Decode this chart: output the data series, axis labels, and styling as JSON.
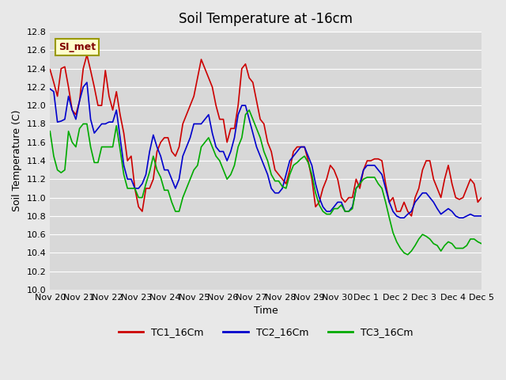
{
  "title": "Soil Temperature at -16cm",
  "xlabel": "Time",
  "ylabel": "Soil Temperature (C)",
  "ylim": [
    10.0,
    12.8
  ],
  "yticks": [
    10.0,
    10.2,
    10.4,
    10.6,
    10.8,
    11.0,
    11.2,
    11.4,
    11.6,
    11.8,
    12.0,
    12.2,
    12.4,
    12.6,
    12.8
  ],
  "xtick_labels": [
    "Nov 20",
    "Nov 21",
    "Nov 22",
    "Nov 23",
    "Nov 24",
    "Nov 25",
    "Nov 26",
    "Nov 27",
    "Nov 28",
    "Nov 29",
    "Nov 30",
    "Dec 1",
    "Dec 2",
    "Dec 3",
    "Dec 4",
    "Dec 5"
  ],
  "bg_color": "#e8e8e8",
  "plot_bg_color": "#d8d8d8",
  "grid_color": "#ffffff",
  "legend_label": "SI_met",
  "series_colors": [
    "#cc0000",
    "#0000cc",
    "#00aa00"
  ],
  "series_names": [
    "TC1_16Cm",
    "TC2_16Cm",
    "TC3_16Cm"
  ],
  "TC1": [
    12.39,
    12.25,
    12.1,
    12.4,
    12.42,
    12.2,
    11.95,
    11.9,
    12.05,
    12.4,
    12.55,
    12.38,
    12.2,
    12.0,
    12.0,
    12.38,
    12.1,
    11.95,
    12.15,
    11.9,
    11.7,
    11.4,
    11.45,
    11.1,
    10.9,
    10.85,
    11.1,
    11.1,
    11.2,
    11.5,
    11.6,
    11.65,
    11.65,
    11.5,
    11.45,
    11.55,
    11.8,
    11.9,
    12.0,
    12.1,
    12.3,
    12.5,
    12.4,
    12.3,
    12.2,
    12.0,
    11.85,
    11.85,
    11.6,
    11.75,
    11.75,
    12.0,
    12.4,
    12.45,
    12.3,
    12.25,
    12.05,
    11.85,
    11.8,
    11.6,
    11.5,
    11.3,
    11.25,
    11.2,
    11.15,
    11.3,
    11.5,
    11.55,
    11.55,
    11.55,
    11.4,
    11.2,
    10.9,
    10.95,
    11.1,
    11.2,
    11.35,
    11.3,
    11.2,
    11.0,
    10.95,
    11.0,
    11.0,
    11.2,
    11.1,
    11.3,
    11.4,
    11.4,
    11.42,
    11.42,
    11.4,
    11.15,
    10.95,
    11.0,
    10.85,
    10.85,
    10.95,
    10.85,
    10.8,
    11.0,
    11.1,
    11.3,
    11.4,
    11.4,
    11.2,
    11.1,
    11.0,
    11.2,
    11.35,
    11.15,
    11.0,
    10.98,
    11.0,
    11.1,
    11.2,
    11.15,
    10.95,
    11.0
  ],
  "TC2": [
    12.18,
    12.15,
    11.82,
    11.83,
    11.85,
    12.1,
    11.95,
    11.85,
    12.05,
    12.2,
    12.25,
    11.85,
    11.7,
    11.75,
    11.8,
    11.8,
    11.82,
    11.82,
    11.95,
    11.65,
    11.35,
    11.2,
    11.2,
    11.1,
    11.1,
    11.15,
    11.25,
    11.5,
    11.68,
    11.55,
    11.45,
    11.3,
    11.3,
    11.2,
    11.1,
    11.2,
    11.45,
    11.55,
    11.65,
    11.8,
    11.8,
    11.8,
    11.85,
    11.9,
    11.7,
    11.55,
    11.5,
    11.5,
    11.4,
    11.5,
    11.65,
    11.9,
    12.0,
    12.0,
    11.85,
    11.7,
    11.55,
    11.45,
    11.35,
    11.25,
    11.1,
    11.05,
    11.05,
    11.1,
    11.25,
    11.4,
    11.45,
    11.5,
    11.55,
    11.55,
    11.45,
    11.35,
    11.15,
    11.0,
    10.9,
    10.85,
    10.85,
    10.9,
    10.95,
    10.95,
    10.85,
    10.85,
    10.9,
    11.1,
    11.15,
    11.3,
    11.35,
    11.35,
    11.35,
    11.3,
    11.25,
    11.1,
    10.95,
    10.85,
    10.8,
    10.78,
    10.78,
    10.82,
    10.85,
    10.95,
    11.0,
    11.05,
    11.05,
    11.0,
    10.95,
    10.88,
    10.82,
    10.85,
    10.88,
    10.85,
    10.8,
    10.78,
    10.78,
    10.8,
    10.82,
    10.8,
    10.8,
    10.8
  ],
  "TC3": [
    11.72,
    11.45,
    11.3,
    11.27,
    11.3,
    11.72,
    11.6,
    11.55,
    11.75,
    11.8,
    11.8,
    11.55,
    11.38,
    11.38,
    11.55,
    11.55,
    11.55,
    11.55,
    11.78,
    11.52,
    11.25,
    11.1,
    11.1,
    11.1,
    11.0,
    11.0,
    11.15,
    11.28,
    11.45,
    11.3,
    11.22,
    11.08,
    11.08,
    10.95,
    10.85,
    10.85,
    11.0,
    11.1,
    11.2,
    11.3,
    11.35,
    11.55,
    11.6,
    11.65,
    11.55,
    11.45,
    11.4,
    11.3,
    11.2,
    11.25,
    11.35,
    11.55,
    11.65,
    11.9,
    11.95,
    11.85,
    11.75,
    11.65,
    11.5,
    11.4,
    11.25,
    11.18,
    11.18,
    11.12,
    11.1,
    11.25,
    11.35,
    11.38,
    11.42,
    11.45,
    11.38,
    11.25,
    11.05,
    10.92,
    10.85,
    10.82,
    10.82,
    10.88,
    10.88,
    10.92,
    10.85,
    10.85,
    10.88,
    11.1,
    11.15,
    11.2,
    11.22,
    11.22,
    11.22,
    11.15,
    11.1,
    10.95,
    10.78,
    10.62,
    10.52,
    10.45,
    10.4,
    10.38,
    10.42,
    10.48,
    10.55,
    10.6,
    10.58,
    10.55,
    10.5,
    10.48,
    10.42,
    10.48,
    10.52,
    10.5,
    10.45,
    10.45,
    10.45,
    10.48,
    10.55,
    10.55,
    10.52,
    10.5
  ]
}
